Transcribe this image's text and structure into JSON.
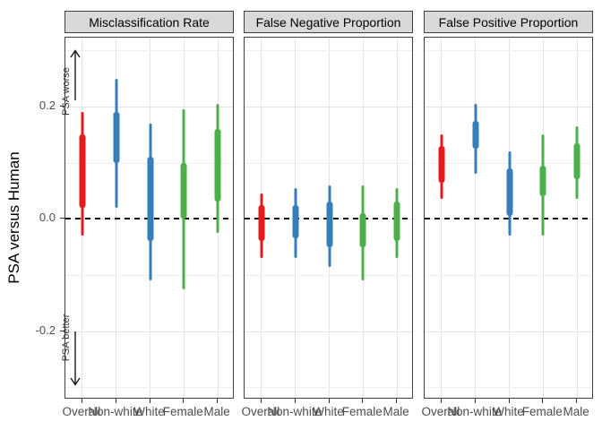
{
  "figure_title": "",
  "y_axis": {
    "title": "PSA versus Human",
    "tick_labels": [
      "0.2",
      "0.0",
      "-0.2"
    ],
    "tick_values": [
      0.2,
      0.0,
      -0.2
    ]
  },
  "annotations": {
    "worse_label": "PSA worse",
    "better_label": "PSA better"
  },
  "palette": {
    "overall": "#E41A1C",
    "race": "#377EB8",
    "sex": "#4DAF4A"
  },
  "chart_data": {
    "type": "interval",
    "ylabel": "PSA versus Human",
    "ylim": [
      -0.32,
      0.32
    ],
    "grid": "on",
    "reference_line": 0.0,
    "major_grid_values": [
      0.2,
      0.0,
      -0.2
    ],
    "minor_grid_values": [
      0.3,
      0.1,
      -0.1,
      -0.3
    ],
    "categories": [
      "Overall",
      "Non-white",
      "White",
      "Female",
      "Male"
    ],
    "annotations": [
      {
        "text": "PSA worse",
        "direction": "up"
      },
      {
        "text": "PSA better",
        "direction": "down"
      }
    ],
    "panels": [
      {
        "title": "Misclassification Rate",
        "intervals": [
          {
            "category": "Overall",
            "color": "#E41A1C",
            "outer": [
              -0.03,
              0.19
            ],
            "inner": [
              0.02,
              0.15
            ]
          },
          {
            "category": "Non-white",
            "color": "#377EB8",
            "outer": [
              0.02,
              0.25
            ],
            "inner": [
              0.1,
              0.19
            ]
          },
          {
            "category": "White",
            "color": "#377EB8",
            "outer": [
              -0.11,
              0.17
            ],
            "inner": [
              -0.04,
              0.11
            ]
          },
          {
            "category": "Female",
            "color": "#4DAF4A",
            "outer": [
              -0.125,
              0.195
            ],
            "inner": [
              0.0,
              0.1
            ]
          },
          {
            "category": "Male",
            "color": "#4DAF4A",
            "outer": [
              -0.025,
              0.205
            ],
            "inner": [
              0.03,
              0.16
            ]
          }
        ]
      },
      {
        "title": "False Negative Proportion",
        "intervals": [
          {
            "category": "Overall",
            "color": "#E41A1C",
            "outer": [
              -0.07,
              0.045
            ],
            "inner": [
              -0.04,
              0.025
            ]
          },
          {
            "category": "Non-white",
            "color": "#377EB8",
            "outer": [
              -0.07,
              0.055
            ],
            "inner": [
              -0.035,
              0.025
            ]
          },
          {
            "category": "White",
            "color": "#377EB8",
            "outer": [
              -0.085,
              0.06
            ],
            "inner": [
              -0.05,
              0.03
            ]
          },
          {
            "category": "Female",
            "color": "#4DAF4A",
            "outer": [
              -0.11,
              0.06
            ],
            "inner": [
              -0.05,
              0.01
            ]
          },
          {
            "category": "Male",
            "color": "#4DAF4A",
            "outer": [
              -0.07,
              0.055
            ],
            "inner": [
              -0.04,
              0.03
            ]
          }
        ]
      },
      {
        "title": "False Positive Proportion",
        "intervals": [
          {
            "category": "Overall",
            "color": "#E41A1C",
            "outer": [
              0.035,
              0.15
            ],
            "inner": [
              0.065,
              0.13
            ]
          },
          {
            "category": "Non-white",
            "color": "#377EB8",
            "outer": [
              0.08,
              0.205
            ],
            "inner": [
              0.125,
              0.175
            ]
          },
          {
            "category": "White",
            "color": "#377EB8",
            "outer": [
              -0.03,
              0.12
            ],
            "inner": [
              0.005,
              0.09
            ]
          },
          {
            "category": "Female",
            "color": "#4DAF4A",
            "outer": [
              -0.03,
              0.15
            ],
            "inner": [
              0.04,
              0.095
            ]
          },
          {
            "category": "Male",
            "color": "#4DAF4A",
            "outer": [
              0.035,
              0.165
            ],
            "inner": [
              0.07,
              0.135
            ]
          }
        ]
      }
    ]
  }
}
